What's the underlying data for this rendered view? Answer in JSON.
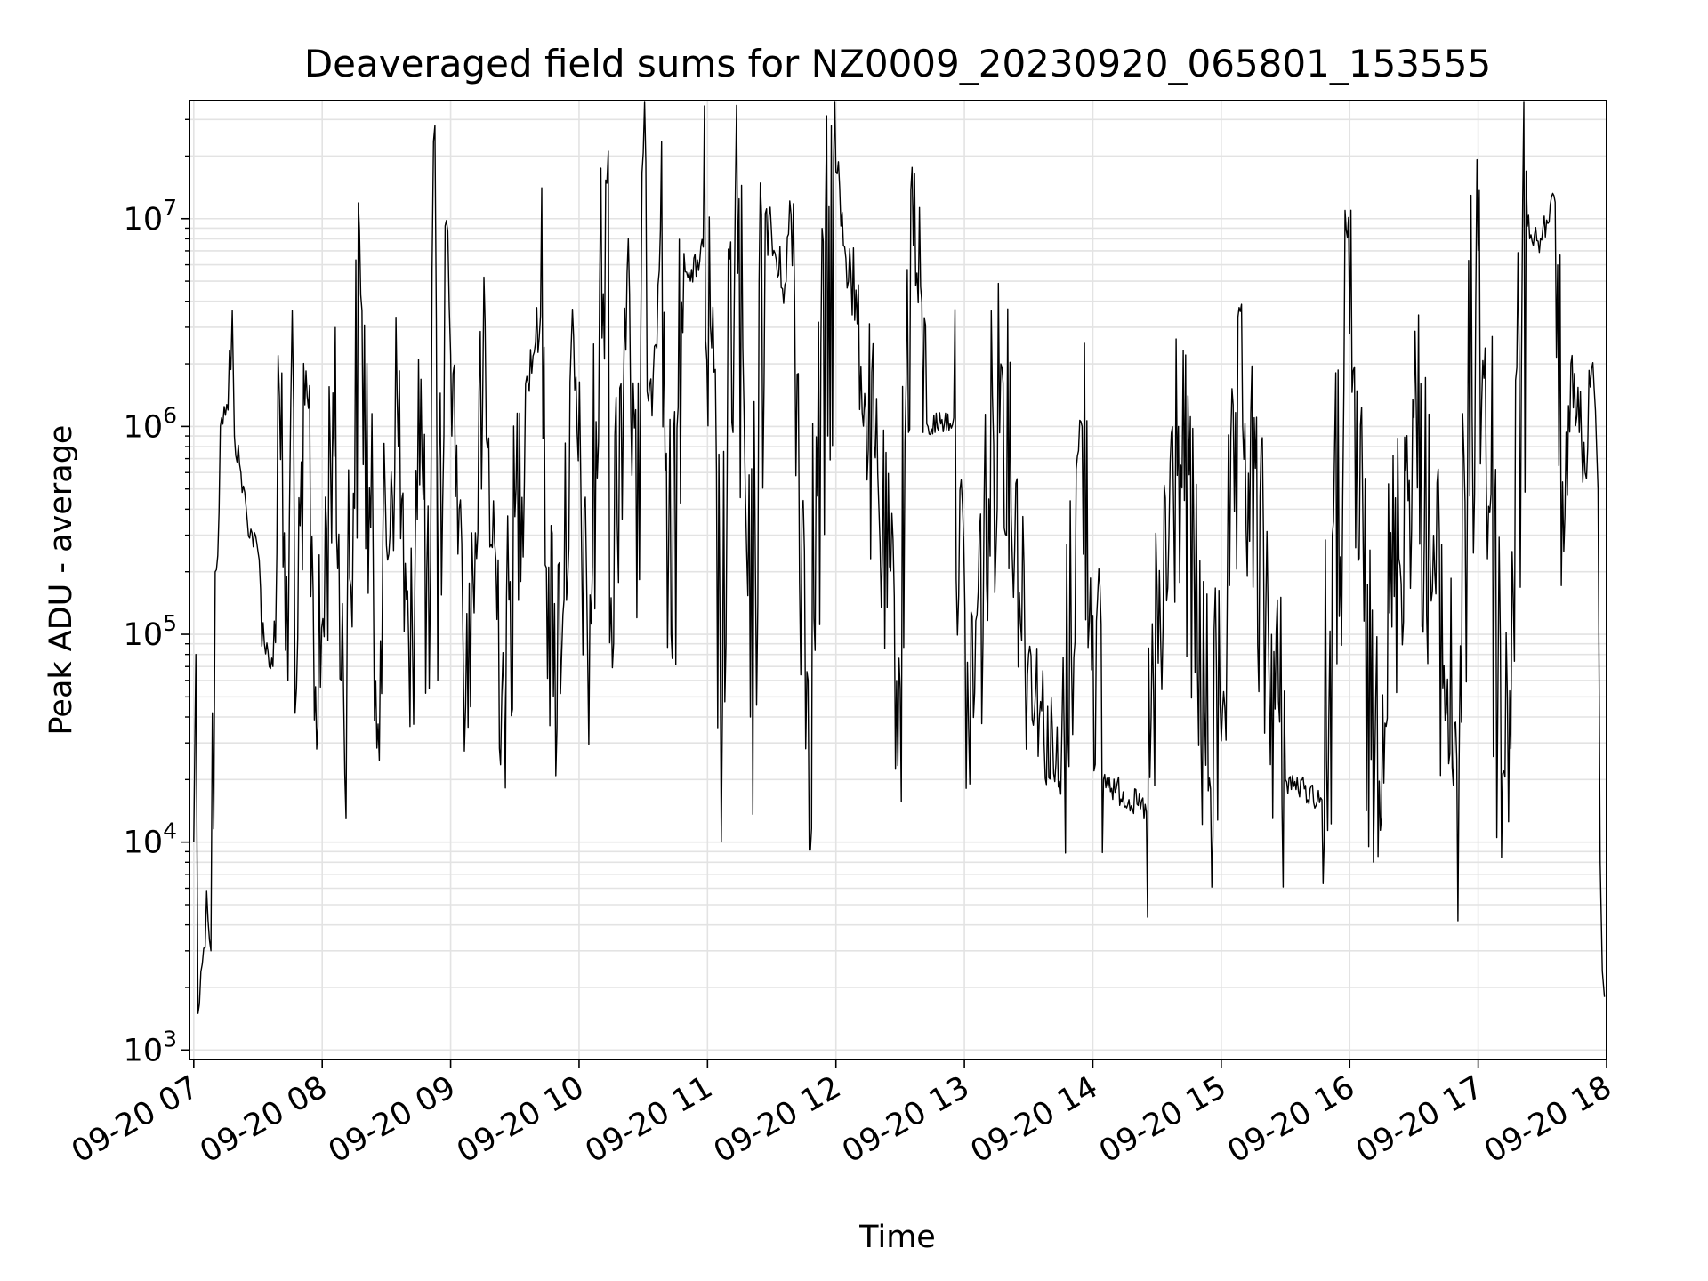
{
  "chart_data": {
    "type": "line",
    "title": "Deaveraged field sums for NZ0009_20230920_065801_153555",
    "xlabel": "Time",
    "ylabel": "Peak ADU - average",
    "y_scale": "log",
    "grid": true,
    "grid_minor": true,
    "legend": "none",
    "line_color": "#000000",
    "grid_color": "#e3e3e3",
    "xlim": [
      "2023-09-20 06:58",
      "2023-09-20 18:00"
    ],
    "ylim": [
      900,
      37000000
    ],
    "x_ticks": [
      {
        "value": "2023-09-20 07:00",
        "label": "09-20 07"
      },
      {
        "value": "2023-09-20 08:00",
        "label": "09-20 08"
      },
      {
        "value": "2023-09-20 09:00",
        "label": "09-20 09"
      },
      {
        "value": "2023-09-20 10:00",
        "label": "09-20 10"
      },
      {
        "value": "2023-09-20 11:00",
        "label": "09-20 11"
      },
      {
        "value": "2023-09-20 12:00",
        "label": "09-20 12"
      },
      {
        "value": "2023-09-20 13:00",
        "label": "09-20 13"
      },
      {
        "value": "2023-09-20 14:00",
        "label": "09-20 14"
      },
      {
        "value": "2023-09-20 15:00",
        "label": "09-20 15"
      },
      {
        "value": "2023-09-20 16:00",
        "label": "09-20 16"
      },
      {
        "value": "2023-09-20 17:00",
        "label": "09-20 17"
      },
      {
        "value": "2023-09-20 18:00",
        "label": "09-20 18"
      }
    ],
    "y_ticks": [
      {
        "value": 1000,
        "base": "10",
        "exp": "3"
      },
      {
        "value": 10000,
        "base": "10",
        "exp": "4"
      },
      {
        "value": 100000,
        "base": "10",
        "exp": "5"
      },
      {
        "value": 1000000,
        "base": "10",
        "exp": "6"
      },
      {
        "value": 10000000,
        "base": "10",
        "exp": "7"
      }
    ],
    "series": [
      {
        "points": [
          [
            "2023-09-20 07:00",
            10000
          ],
          [
            "2023-09-20 07:01",
            80000
          ],
          [
            "2023-09-20 07:02",
            1500
          ],
          [
            "2023-09-20 07:04",
            2600
          ],
          [
            "2023-09-20 07:06",
            5800
          ],
          [
            "2023-09-20 07:08",
            3000
          ],
          [
            "2023-09-20 07:10",
            200000
          ],
          [
            "2023-09-20 07:13",
            1100000
          ],
          [
            "2023-09-20 07:16",
            1200000
          ],
          [
            "2023-09-20 07:18",
            3600000
          ],
          [
            "2023-09-20 07:19",
            900000
          ],
          [
            "2023-09-20 07:22",
            600000
          ],
          [
            "2023-09-20 07:25",
            350000
          ],
          [
            "2023-09-20 07:30",
            250000
          ],
          [
            "2023-09-20 07:33",
            90000
          ],
          [
            "2023-09-20 07:37",
            70000
          ],
          [
            "2023-09-20 07:40",
            1400000
          ],
          [
            "2023-09-20 07:44",
            60000
          ],
          [
            "2023-09-20 07:46",
            3600000
          ],
          [
            "2023-09-20 07:48",
            55000
          ],
          [
            "2023-09-20 07:53",
            1400000
          ],
          [
            "2023-09-20 07:58",
            36000
          ],
          [
            "2023-09-20 08:05",
            1450000
          ],
          [
            "2023-09-20 08:10",
            50000
          ],
          [
            "2023-09-20 08:18",
            4300000
          ],
          [
            "2023-09-20 08:25",
            60000
          ],
          [
            "2023-09-20 08:35",
            1400000
          ],
          [
            "2023-09-20 08:41",
            36000
          ],
          [
            "2023-09-20 08:45",
            2100000
          ],
          [
            "2023-09-20 08:50",
            55000
          ],
          [
            "2023-09-20 08:52",
            23500000
          ],
          [
            "2023-09-20 08:54",
            60000
          ],
          [
            "2023-09-20 08:58",
            9800000
          ],
          [
            "2023-09-20 09:00",
            2200000
          ],
          [
            "2023-09-20 09:04",
            400000
          ],
          [
            "2023-09-20 09:07",
            45000
          ],
          [
            "2023-09-20 09:15",
            1500000
          ],
          [
            "2023-09-20 09:25",
            50000
          ],
          [
            "2023-09-20 09:35",
            1600000
          ],
          [
            "2023-09-20 09:42",
            3400000
          ],
          [
            "2023-09-20 09:48",
            50000
          ],
          [
            "2023-09-20 09:58",
            1500000
          ],
          [
            "2023-09-20 10:04",
            80000
          ],
          [
            "2023-09-20 10:13",
            14800000
          ],
          [
            "2023-09-20 10:15",
            150000
          ],
          [
            "2023-09-20 10:23",
            8000000
          ],
          [
            "2023-09-20 10:27",
            120000
          ],
          [
            "2023-09-20 10:30",
            20800000
          ],
          [
            "2023-09-20 10:33",
            1600000
          ],
          [
            "2023-09-20 10:38",
            8800000
          ],
          [
            "2023-09-20 10:43",
            100000
          ],
          [
            "2023-09-20 10:49",
            6800000
          ],
          [
            "2023-09-20 10:52",
            5000000
          ],
          [
            "2023-09-20 10:58",
            7300000
          ],
          [
            "2023-09-20 11:07",
            48000
          ],
          [
            "2023-09-20 11:13",
            13000000
          ],
          [
            "2023-09-20 11:20",
            40000
          ],
          [
            "2023-09-20 11:27",
            10600000
          ],
          [
            "2023-09-20 11:35",
            4600000
          ],
          [
            "2023-09-20 11:39",
            10500000
          ],
          [
            "2023-09-20 11:47",
            60000
          ],
          [
            "2023-09-20 12:00",
            16800000
          ],
          [
            "2023-09-20 12:07",
            5400000
          ],
          [
            "2023-09-20 12:14",
            1200000
          ],
          [
            "2023-09-20 12:30",
            55000
          ],
          [
            "2023-09-20 12:35",
            13700000
          ],
          [
            "2023-09-20 12:43",
            1000000
          ],
          [
            "2023-09-20 12:55",
            1100000
          ],
          [
            "2023-09-20 13:02",
            35000
          ],
          [
            "2023-09-20 13:17",
            2000000
          ],
          [
            "2023-09-20 13:30",
            80000
          ],
          [
            "2023-09-20 13:45",
            17000
          ],
          [
            "2023-09-20 13:55",
            1000000
          ],
          [
            "2023-09-20 14:05",
            20000
          ],
          [
            "2023-09-20 14:25",
            14000
          ],
          [
            "2023-09-20 14:40",
            1000000
          ],
          [
            "2023-09-20 14:55",
            18000
          ],
          [
            "2023-09-20 15:10",
            1000000
          ],
          [
            "2023-09-20 15:30",
            20000
          ],
          [
            "2023-09-20 15:47",
            16000
          ],
          [
            "2023-09-20 16:00",
            2800000
          ],
          [
            "2023-09-20 16:10",
            25000
          ],
          [
            "2023-09-20 16:30",
            1100000
          ],
          [
            "2023-09-20 16:50",
            25000
          ],
          [
            "2023-09-20 17:00",
            7000000
          ],
          [
            "2023-09-20 17:12",
            22000
          ],
          [
            "2023-09-20 17:23",
            9200000
          ],
          [
            "2023-09-20 17:28",
            7800000
          ],
          [
            "2023-09-20 17:36",
            12000000
          ],
          [
            "2023-09-20 17:40",
            250000
          ],
          [
            "2023-09-20 17:45",
            1800000
          ],
          [
            "2023-09-20 17:50",
            600000
          ],
          [
            "2023-09-20 17:53",
            1900000
          ],
          [
            "2023-09-20 17:56",
            500000
          ],
          [
            "2023-09-20 17:57",
            8000
          ],
          [
            "2023-09-20 17:58",
            2400
          ],
          [
            "2023-09-20 17:59",
            1800
          ]
        ]
      }
    ]
  }
}
